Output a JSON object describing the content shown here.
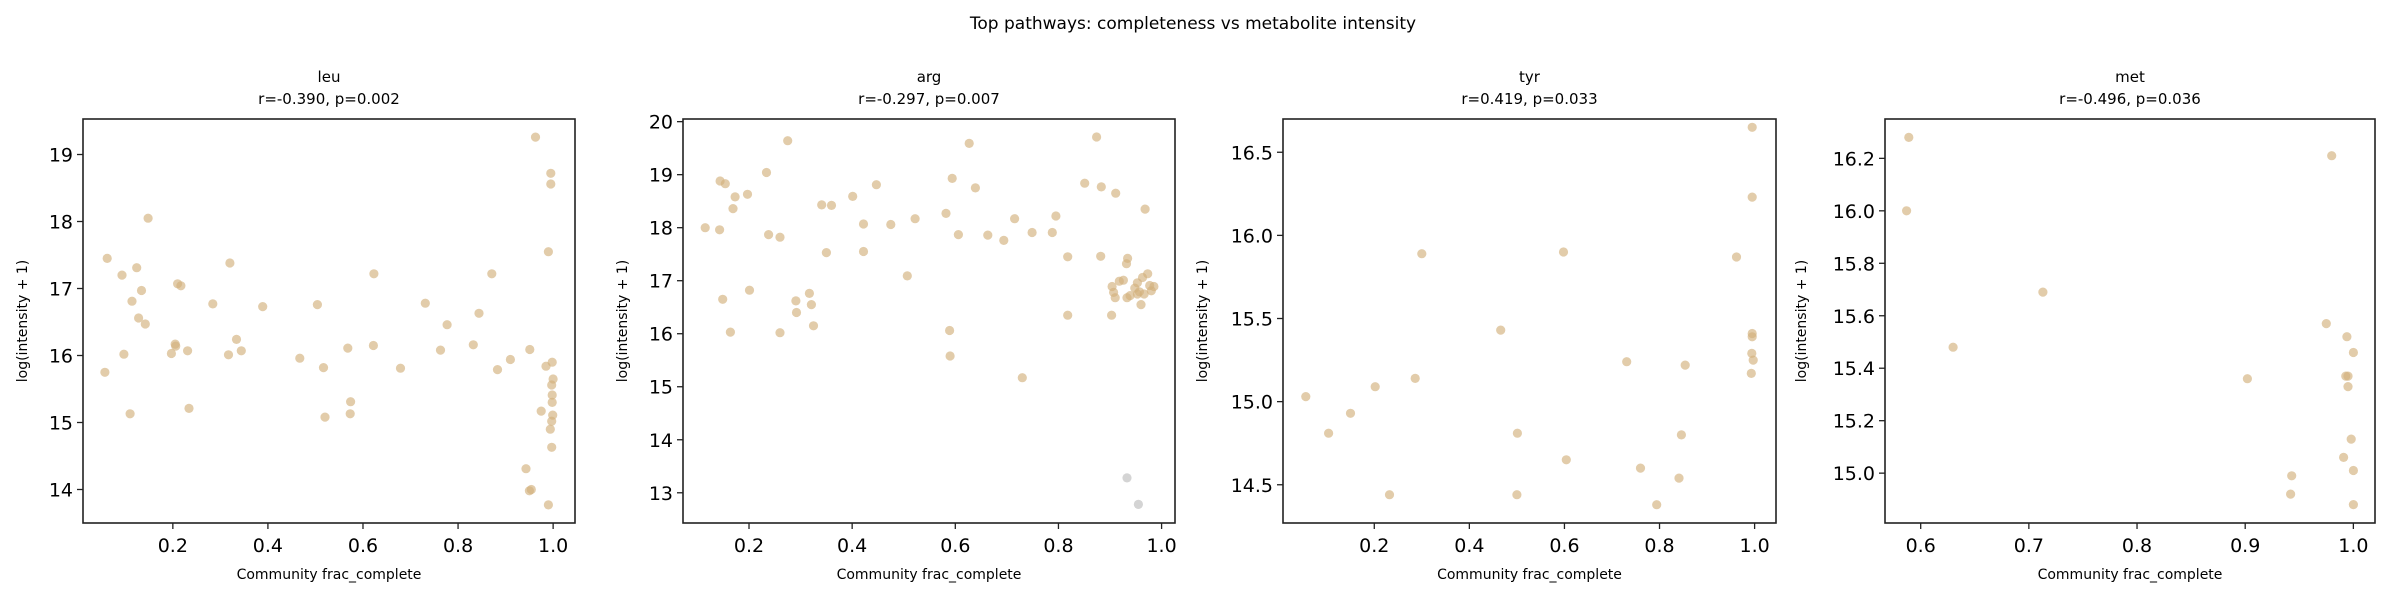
{
  "suptitle": "Top pathways: completeness vs metabolite intensity",
  "colors": {
    "point": "#d2b07c",
    "excluded_point": "#bdbdbd",
    "axis": "#222222"
  },
  "chart_data": [
    {
      "type": "scatter",
      "title": "leu",
      "subtitle": "r=-0.390, p=0.002",
      "xlabel": "Community frac_complete",
      "ylabel": "log(intensity + 1)",
      "xlim": [
        0.011,
        1.046
      ],
      "ylim": [
        13.5,
        19.53
      ],
      "xticks": [
        "0.2",
        "0.4",
        "0.6",
        "0.8",
        "1.0"
      ],
      "yticks": [
        "14",
        "15",
        "16",
        "17",
        "18",
        "19"
      ],
      "grid": false,
      "series": [
        {
          "color": "#d2b07c",
          "points": [
            [
              0.062,
              17.45
            ],
            [
              0.057,
              15.75
            ],
            [
              0.093,
              17.2
            ],
            [
              0.097,
              16.02
            ],
            [
              0.11,
              15.13
            ],
            [
              0.114,
              16.81
            ],
            [
              0.124,
              17.31
            ],
            [
              0.128,
              16.56
            ],
            [
              0.134,
              16.97
            ],
            [
              0.142,
              16.47
            ],
            [
              0.148,
              18.05
            ],
            [
              0.197,
              16.03
            ],
            [
              0.205,
              16.17
            ],
            [
              0.206,
              16.14
            ],
            [
              0.21,
              17.07
            ],
            [
              0.217,
              17.04
            ],
            [
              0.231,
              16.07
            ],
            [
              0.234,
              15.21
            ],
            [
              0.284,
              16.77
            ],
            [
              0.317,
              16.01
            ],
            [
              0.32,
              17.38
            ],
            [
              0.334,
              16.24
            ],
            [
              0.344,
              16.07
            ],
            [
              0.389,
              16.73
            ],
            [
              0.467,
              15.96
            ],
            [
              0.504,
              16.76
            ],
            [
              0.517,
              15.82
            ],
            [
              0.52,
              15.08
            ],
            [
              0.568,
              16.11
            ],
            [
              0.573,
              15.13
            ],
            [
              0.574,
              15.31
            ],
            [
              0.622,
              16.15
            ],
            [
              0.623,
              17.22
            ],
            [
              0.679,
              15.81
            ],
            [
              0.731,
              16.78
            ],
            [
              0.763,
              16.08
            ],
            [
              0.777,
              16.46
            ],
            [
              0.832,
              16.16
            ],
            [
              0.844,
              16.63
            ],
            [
              0.871,
              17.22
            ],
            [
              0.883,
              15.79
            ],
            [
              0.91,
              15.94
            ],
            [
              0.943,
              14.31
            ],
            [
              0.951,
              16.09
            ],
            [
              0.963,
              19.26
            ],
            [
              0.975,
              15.17
            ],
            [
              0.95,
              13.98
            ],
            [
              0.954,
              14.0
            ],
            [
              0.985,
              15.84
            ],
            [
              0.99,
              17.55
            ],
            [
              0.99,
              13.77
            ],
            [
              0.994,
              14.9
            ],
            [
              0.995,
              18.72
            ],
            [
              0.995,
              18.56
            ],
            [
              0.998,
              15.9
            ],
            [
              1.0,
              15.65
            ],
            [
              0.997,
              15.56
            ],
            [
              0.998,
              15.41
            ],
            [
              0.998,
              15.3
            ],
            [
              0.999,
              15.11
            ],
            [
              0.997,
              15.02
            ],
            [
              0.997,
              14.63
            ]
          ]
        }
      ]
    },
    {
      "type": "scatter",
      "title": "arg",
      "subtitle": "r=-0.297, p=0.007",
      "xlabel": "Community frac_complete",
      "ylabel": "log(intensity + 1)",
      "xlim": [
        0.072,
        1.026
      ],
      "ylim": [
        12.43,
        20.05
      ],
      "xticks": [
        "0.2",
        "0.4",
        "0.6",
        "0.8",
        "1.0"
      ],
      "yticks": [
        "13",
        "14",
        "15",
        "16",
        "17",
        "18",
        "19",
        "20"
      ],
      "grid": false,
      "series": [
        {
          "color": "#d2b07c",
          "points": [
            [
              0.115,
              18.0
            ],
            [
              0.143,
              17.96
            ],
            [
              0.144,
              18.88
            ],
            [
              0.154,
              18.83
            ],
            [
              0.169,
              18.36
            ],
            [
              0.173,
              18.58
            ],
            [
              0.197,
              18.63
            ],
            [
              0.201,
              16.82
            ],
            [
              0.149,
              16.65
            ],
            [
              0.164,
              16.03
            ],
            [
              0.234,
              19.04
            ],
            [
              0.238,
              17.87
            ],
            [
              0.26,
              17.82
            ],
            [
              0.26,
              16.02
            ],
            [
              0.275,
              19.64
            ],
            [
              0.291,
              16.62
            ],
            [
              0.292,
              16.4
            ],
            [
              0.317,
              16.76
            ],
            [
              0.321,
              16.55
            ],
            [
              0.325,
              16.15
            ],
            [
              0.341,
              18.43
            ],
            [
              0.35,
              17.53
            ],
            [
              0.36,
              18.42
            ],
            [
              0.401,
              18.59
            ],
            [
              0.422,
              18.07
            ],
            [
              0.422,
              17.55
            ],
            [
              0.447,
              18.81
            ],
            [
              0.475,
              18.06
            ],
            [
              0.507,
              17.09
            ],
            [
              0.522,
              18.17
            ],
            [
              0.582,
              18.27
            ],
            [
              0.589,
              16.06
            ],
            [
              0.59,
              15.58
            ],
            [
              0.594,
              18.93
            ],
            [
              0.606,
              17.87
            ],
            [
              0.627,
              19.59
            ],
            [
              0.639,
              18.75
            ],
            [
              0.663,
              17.86
            ],
            [
              0.694,
              17.76
            ],
            [
              0.715,
              18.17
            ],
            [
              0.73,
              15.17
            ],
            [
              0.749,
              17.91
            ],
            [
              0.788,
              17.91
            ],
            [
              0.795,
              18.22
            ],
            [
              0.818,
              17.45
            ],
            [
              0.818,
              16.35
            ],
            [
              0.851,
              18.84
            ],
            [
              0.874,
              19.71
            ],
            [
              0.882,
              17.46
            ],
            [
              0.883,
              18.77
            ],
            [
              0.903,
              16.35
            ],
            [
              0.911,
              18.65
            ],
            [
              0.968,
              18.35
            ],
            [
              0.934,
              17.42
            ],
            [
              0.932,
              17.32
            ],
            [
              0.904,
              16.89
            ],
            [
              0.907,
              16.78
            ],
            [
              0.91,
              16.68
            ],
            [
              0.918,
              16.99
            ],
            [
              0.926,
              17.01
            ],
            [
              0.933,
              16.68
            ],
            [
              0.939,
              16.72
            ],
            [
              0.948,
              16.86
            ],
            [
              0.953,
              16.96
            ],
            [
              0.957,
              16.79
            ],
            [
              0.96,
              16.55
            ],
            [
              0.963,
              17.06
            ],
            [
              0.966,
              16.75
            ],
            [
              0.973,
              17.13
            ],
            [
              0.977,
              16.91
            ],
            [
              0.98,
              16.81
            ],
            [
              0.985,
              16.89
            ],
            [
              0.953,
              16.75
            ]
          ]
        },
        {
          "color": "#bdbdbd",
          "points": [
            [
              0.933,
              13.28
            ],
            [
              0.955,
              12.78
            ]
          ]
        }
      ]
    },
    {
      "type": "scatter",
      "title": "tyr",
      "subtitle": "r=0.419, p=0.033",
      "xlabel": "Community frac_complete",
      "ylabel": "log(intensity + 1)",
      "xlim": [
        0.008,
        1.045
      ],
      "ylim": [
        14.27,
        16.7
      ],
      "xticks": [
        "0.2",
        "0.4",
        "0.6",
        "0.8",
        "1.0"
      ],
      "yticks": [
        "14.5",
        "15.0",
        "15.5",
        "16.0",
        "16.5"
      ],
      "grid": false,
      "series": [
        {
          "color": "#d2b07c",
          "points": [
            [
              0.056,
              15.03
            ],
            [
              0.104,
              14.81
            ],
            [
              0.15,
              14.93
            ],
            [
              0.202,
              15.09
            ],
            [
              0.232,
              14.44
            ],
            [
              0.286,
              15.14
            ],
            [
              0.3,
              15.89
            ],
            [
              0.466,
              15.43
            ],
            [
              0.5,
              14.44
            ],
            [
              0.501,
              14.81
            ],
            [
              0.598,
              15.9
            ],
            [
              0.604,
              14.65
            ],
            [
              0.731,
              15.24
            ],
            [
              0.76,
              14.6
            ],
            [
              0.794,
              14.38
            ],
            [
              0.841,
              14.54
            ],
            [
              0.846,
              14.8
            ],
            [
              0.854,
              15.22
            ],
            [
              0.962,
              15.87
            ],
            [
              0.995,
              16.65
            ],
            [
              0.995,
              16.23
            ],
            [
              0.995,
              15.41
            ],
            [
              0.995,
              15.39
            ],
            [
              0.994,
              15.29
            ],
            [
              0.997,
              15.25
            ],
            [
              0.993,
              15.17
            ]
          ]
        }
      ]
    },
    {
      "type": "scatter",
      "title": "met",
      "subtitle": "r=-0.496, p=0.036",
      "xlabel": "Community frac_complete",
      "ylabel": "log(intensity + 1)",
      "xlim": [
        0.567,
        1.02
      ],
      "ylim": [
        14.81,
        16.35
      ],
      "xticks": [
        "0.6",
        "0.7",
        "0.8",
        "0.9",
        "1.0"
      ],
      "yticks": [
        "15.0",
        "15.2",
        "15.4",
        "15.6",
        "15.8",
        "16.0",
        "16.2"
      ],
      "grid": false,
      "series": [
        {
          "color": "#d2b07c",
          "points": [
            [
              0.589,
              16.28
            ],
            [
              0.587,
              16.0
            ],
            [
              0.63,
              15.48
            ],
            [
              0.713,
              15.69
            ],
            [
              0.902,
              15.36
            ],
            [
              0.942,
              14.92
            ],
            [
              0.943,
              14.99
            ],
            [
              0.975,
              15.57
            ],
            [
              0.98,
              16.21
            ],
            [
              0.991,
              15.06
            ],
            [
              0.994,
              15.52
            ],
            [
              0.993,
              15.37
            ],
            [
              0.995,
              15.37
            ],
            [
              0.995,
              15.33
            ],
            [
              1.0,
              15.46
            ],
            [
              0.998,
              15.13
            ],
            [
              1.0,
              15.01
            ],
            [
              1.0,
              14.88
            ]
          ]
        }
      ]
    }
  ]
}
